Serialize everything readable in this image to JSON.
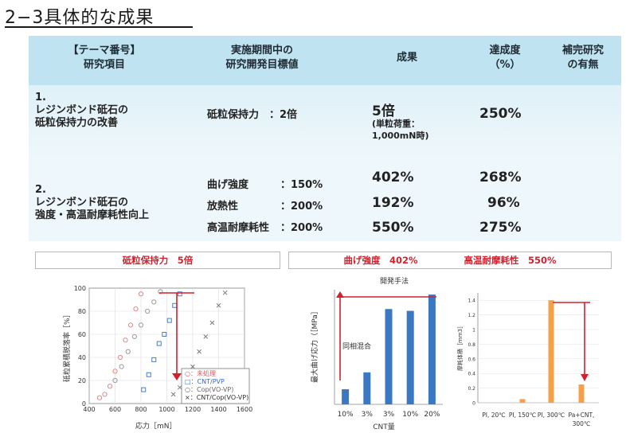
{
  "title": "2−3具体的な成果",
  "table": {
    "headers": [
      {
        "line1": "【テーマ番号】",
        "line2": "研究項目"
      },
      {
        "line1": "実施期間中の",
        "line2": "研究開発目標値"
      },
      {
        "line1": "成果",
        "line2": ""
      },
      {
        "line1": "達成度",
        "line2": "（%）"
      },
      {
        "line1": "補完研究",
        "line2": "の有無"
      }
    ],
    "row1": {
      "item_lines": [
        "1.",
        "レジンボンド砥石の",
        "砥粒保持力の改善"
      ],
      "target": "砥粒保持力　：2倍",
      "result": "5倍",
      "result_note1": "(単粒荷重：",
      "result_note2": "1,000mN時)",
      "achievement": "250%"
    },
    "row2": {
      "item_lines": [
        "2.",
        "レジンボンド砥石の",
        "強度・高温耐摩耗性向上"
      ],
      "targets": [
        {
          "label": "曲げ強度",
          "value": "：150%"
        },
        {
          "label": "放熱性",
          "value": "：200%"
        },
        {
          "label": "高温耐摩耗性",
          "value": "：200%"
        }
      ],
      "results": [
        "402%",
        "192%",
        "550%"
      ],
      "achievements": [
        "268%",
        "96%",
        "275%"
      ]
    }
  },
  "highlights": {
    "left": "砥粒保持力　5倍",
    "right_a": "曲げ強度　402%",
    "right_b": "高温耐摩耗性　550%"
  },
  "charts": {
    "scatter": {
      "ylabel": "砥粒累積脱落率［%］",
      "xlabel": "応力［mN］",
      "xticks": [
        "400",
        "600",
        "800",
        "1000",
        "1200",
        "1400",
        "1600"
      ],
      "yticks": [
        "0",
        "20",
        "40",
        "60",
        "80",
        "100"
      ],
      "legend": [
        "○：未処理",
        "□：CNT/PVP",
        "○：Cop(VO-VP)",
        "×：CNT/Cop(VO-VP)"
      ]
    },
    "bar": {
      "title": "開発手法",
      "ylabel": "最大曲げ応力（［MPa］",
      "xlabel": "CNT量",
      "annotation": "同相混合",
      "xticks": [
        "10%",
        "3%",
        "3%",
        "10%",
        "20%"
      ]
    },
    "wear": {
      "ylabel": "摩耗体積［mm3］",
      "yticks": [
        "0",
        "0.2",
        "0.4",
        "0.6",
        "0.8",
        "1",
        "1.2",
        "1.4"
      ],
      "xticks": [
        "PI, 20℃",
        "PI, 150℃",
        "PI, 300℃",
        "Pa+CNT,",
        "300℃"
      ]
    }
  },
  "chart_data": [
    {
      "type": "scatter",
      "xlabel": "応力［mN］",
      "ylabel": "砥粒累積脱落率［%］",
      "xlim": [
        400,
        1600
      ],
      "ylim": [
        0,
        100
      ],
      "series": [
        {
          "name": "：未処理",
          "color": "#e08a8a",
          "marker": "circle",
          "x": [
            480,
            520,
            560,
            600,
            640,
            680,
            720,
            760,
            800
          ],
          "y": [
            5,
            8,
            15,
            28,
            40,
            55,
            68,
            82,
            95
          ]
        },
        {
          "name": "：CNT/PVP",
          "color": "#4a7bd0",
          "marker": "square",
          "x": [
            820,
            860,
            900,
            940,
            980,
            1020,
            1060,
            1100
          ],
          "y": [
            12,
            25,
            38,
            52,
            60,
            72,
            85,
            95
          ]
        },
        {
          "name": "：Cop(VO-VP)",
          "color": "#9a9a9a",
          "marker": "circle",
          "x": [
            600,
            650,
            700,
            750,
            800,
            850,
            900,
            950
          ],
          "y": [
            20,
            32,
            45,
            58,
            68,
            80,
            88,
            97
          ]
        },
        {
          "name": "：CNT/Cop(VO-VP)",
          "color": "#7a7a7a",
          "marker": "x",
          "x": [
            1050,
            1100,
            1150,
            1200,
            1250,
            1300,
            1350,
            1400,
            1450
          ],
          "y": [
            8,
            14,
            22,
            32,
            45,
            58,
            70,
            85,
            96
          ]
        }
      ]
    },
    {
      "type": "bar",
      "title": "開発手法",
      "xlabel": "CNT量",
      "ylabel": "最大曲げ応力（［MPa］",
      "categories": [
        "10%",
        "3%",
        "3%",
        "10%",
        "20%"
      ],
      "values": [
        25,
        53,
        158,
        155,
        182
      ],
      "ylim": [
        0,
        190
      ],
      "color": "#3b78c3"
    },
    {
      "type": "bar",
      "ylabel": "摩耗体積［mm3］",
      "categories": [
        "PI, 20℃",
        "PI, 150℃",
        "PI, 300℃",
        "Pa+CNT, 300℃"
      ],
      "values": [
        0.0,
        0.05,
        1.4,
        0.25
      ],
      "ylim": [
        0,
        1.5
      ],
      "color": "#f4a14a"
    }
  ]
}
